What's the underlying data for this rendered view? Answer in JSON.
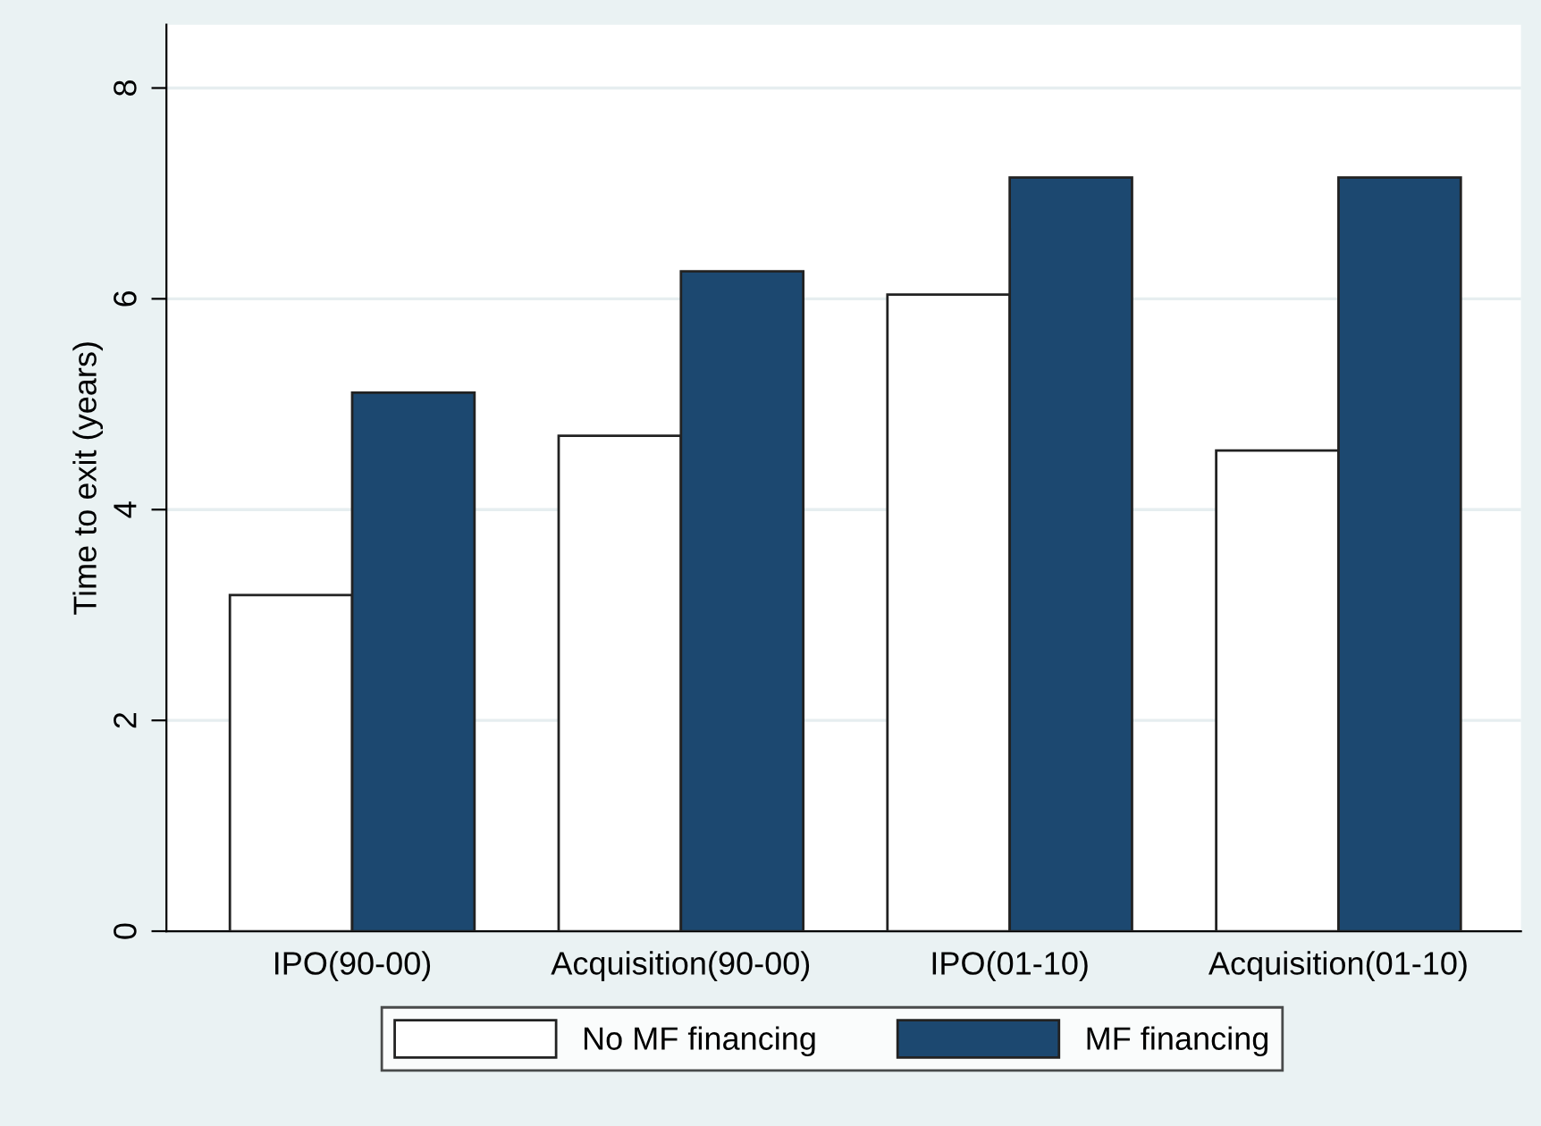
{
  "chart_data": {
    "type": "bar",
    "ylabel": "Time to exit (years)",
    "categories": [
      "IPO(90-00)",
      "Acquisition(90-00)",
      "IPO(01-10)",
      "Acquisition(01-10)"
    ],
    "series": [
      {
        "name": "No MF financing",
        "color": "#ffffff",
        "values": [
          3.19,
          4.7,
          6.04,
          4.56
        ]
      },
      {
        "name": "MF financing",
        "color": "#1c4870",
        "values": [
          5.11,
          6.26,
          7.15,
          7.15
        ]
      }
    ],
    "ylim": [
      0,
      8.6
    ],
    "yticks": [
      0,
      2,
      4,
      6,
      8
    ],
    "grid": "y",
    "legend": "bottom"
  }
}
